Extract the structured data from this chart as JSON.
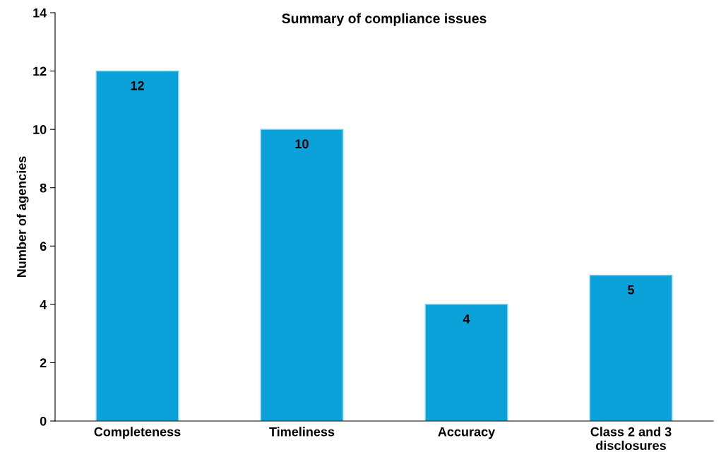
{
  "chart_data": {
    "type": "bar",
    "title": "Summary of compliance issues",
    "ylabel": "Number of agencies",
    "categories": [
      "Completeness",
      "Timeliness",
      "Accuracy",
      "Class 2 and 3\ndisclosures"
    ],
    "values": [
      12,
      10,
      4,
      5
    ],
    "color": "#0aa2d9",
    "ylim": [
      0,
      14
    ],
    "yticks": [
      0,
      2,
      4,
      6,
      8,
      10,
      12,
      14
    ],
    "grid": false,
    "data_labels": true
  }
}
